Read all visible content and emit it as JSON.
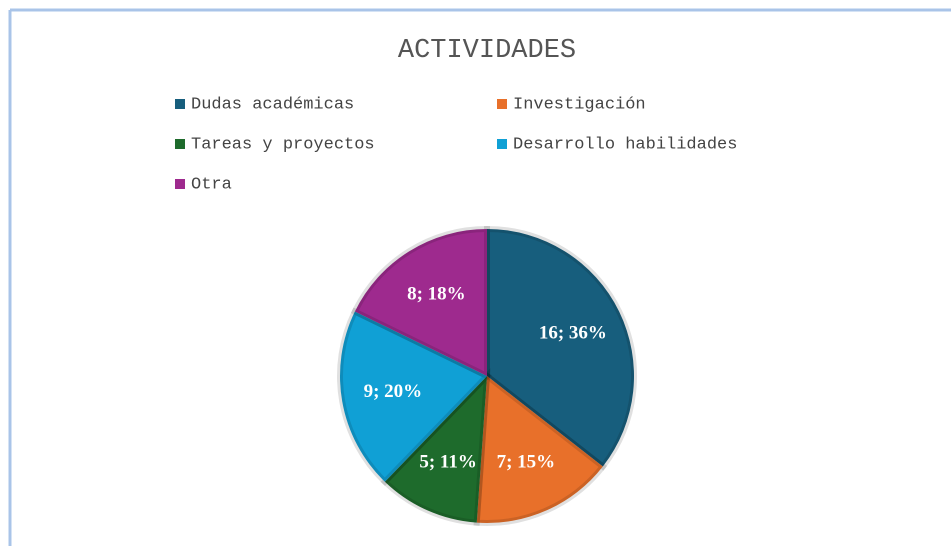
{
  "chart_data": {
    "type": "pie",
    "title": "ACTIVIDADES",
    "categories": [
      "Dudas académicas",
      "Investigación",
      "Tareas y proyectos",
      "Desarrollo habilidades",
      "Otra"
    ],
    "values": [
      16,
      7,
      5,
      9,
      8
    ],
    "value_labels": [
      "16; 36%",
      "7; 15%",
      "5; 11%",
      "9; 20%",
      "8; 18%"
    ],
    "colors": [
      "#175e7d",
      "#e8702a",
      "#1e6b2c",
      "#10a0d5",
      "#9e2a8e"
    ],
    "legend": "top"
  }
}
